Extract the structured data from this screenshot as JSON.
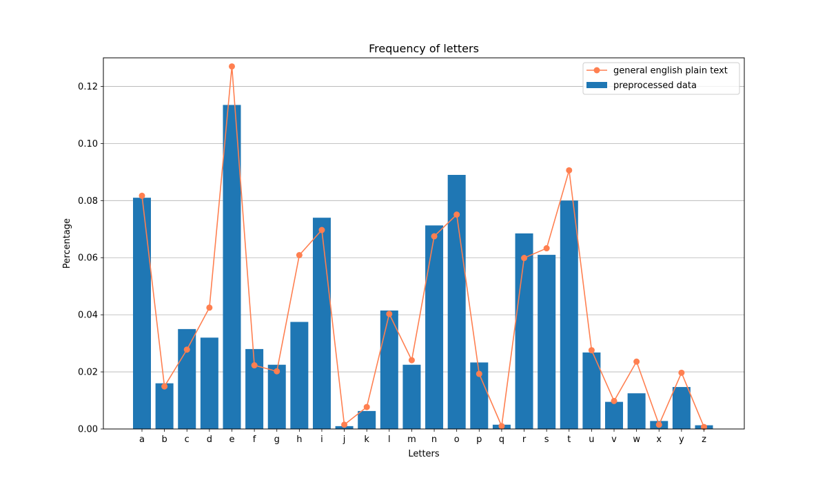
{
  "chart_data": {
    "type": "bar",
    "title": "Frequency of letters",
    "xlabel": "Letters",
    "ylabel": "Percentage",
    "ylim": [
      0,
      0.13
    ],
    "yticks": [
      "0.00",
      "0.02",
      "0.04",
      "0.06",
      "0.08",
      "0.10",
      "0.12"
    ],
    "grid": "horizontal",
    "legend_position": "top-right",
    "categories": [
      "a",
      "b",
      "c",
      "d",
      "e",
      "f",
      "g",
      "h",
      "i",
      "j",
      "k",
      "l",
      "m",
      "n",
      "o",
      "p",
      "q",
      "r",
      "s",
      "t",
      "u",
      "v",
      "w",
      "x",
      "y",
      "z"
    ],
    "series": [
      {
        "name": "preprocessed data",
        "type": "bar",
        "color": "#1f77b4",
        "values": [
          0.081,
          0.016,
          0.035,
          0.032,
          0.1135,
          0.028,
          0.0225,
          0.0375,
          0.074,
          0.001,
          0.0063,
          0.0415,
          0.0225,
          0.0713,
          0.089,
          0.0233,
          0.0015,
          0.0685,
          0.061,
          0.08,
          0.0268,
          0.0095,
          0.0125,
          0.0028,
          0.0147,
          0.0013
        ]
      },
      {
        "name": "general english plain text",
        "type": "line",
        "color": "#ff7f50",
        "values": [
          0.0817,
          0.0149,
          0.0278,
          0.0425,
          0.127,
          0.0223,
          0.0202,
          0.0609,
          0.0697,
          0.0015,
          0.0077,
          0.0403,
          0.0241,
          0.0675,
          0.0751,
          0.0193,
          0.001,
          0.0599,
          0.0633,
          0.0906,
          0.0276,
          0.0098,
          0.0236,
          0.0015,
          0.0197,
          0.0007
        ]
      }
    ]
  }
}
